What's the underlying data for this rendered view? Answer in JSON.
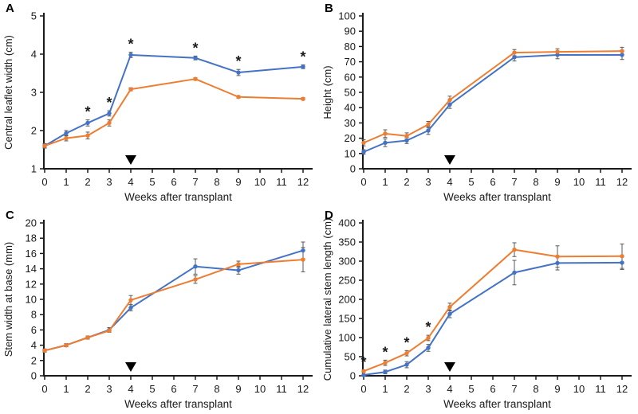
{
  "figure": {
    "xlabel": "Weeks after transplant",
    "x_ticks": [
      0,
      1,
      2,
      3,
      4,
      5,
      6,
      7,
      8,
      9,
      10,
      11,
      12
    ],
    "axis_color": "#1a1a1a",
    "error_bar_color": "#595959",
    "annotation_color": "#000000",
    "series_palette": {
      "blue": "#4472C4",
      "orange": "#ED7D31"
    }
  },
  "chart_data": [
    {
      "panel": "A",
      "type": "line",
      "ylabel": "Central leaflet width (cm)",
      "ylim": [
        1,
        5
      ],
      "yticks": [
        1,
        2,
        3,
        4,
        5
      ],
      "x": [
        0,
        1,
        2,
        3,
        4,
        7,
        9,
        12
      ],
      "series": [
        {
          "name": "blue",
          "color": "#4472C4",
          "values": [
            1.6,
            1.93,
            2.2,
            2.45,
            3.98,
            3.9,
            3.52,
            3.67
          ],
          "errors": [
            0.05,
            0.07,
            0.08,
            0.07,
            0.07,
            0.05,
            0.08,
            0.05
          ]
        },
        {
          "name": "orange",
          "color": "#ED7D31",
          "values": [
            1.6,
            1.8,
            1.87,
            2.2,
            3.08,
            3.35,
            2.88,
            2.83
          ],
          "errors": [
            0.06,
            0.07,
            0.09,
            0.08,
            0.04,
            0.03,
            0.03,
            0.03
          ]
        }
      ],
      "asterisk_weeks": [
        2,
        3,
        4,
        7,
        9,
        12
      ],
      "triangle_week": 4
    },
    {
      "panel": "B",
      "type": "line",
      "ylabel": "Height (cm)",
      "ylim": [
        0,
        100
      ],
      "yticks": [
        0,
        10,
        20,
        30,
        40,
        50,
        60,
        70,
        80,
        90,
        100
      ],
      "x": [
        0,
        1,
        2,
        3,
        4,
        7,
        9,
        12
      ],
      "series": [
        {
          "name": "blue",
          "color": "#4472C4",
          "values": [
            11,
            17,
            18.5,
            25,
            42,
            73,
            74.5,
            74.5
          ],
          "errors": [
            1.5,
            2.5,
            2,
            2.5,
            2.5,
            2.5,
            2.5,
            3
          ]
        },
        {
          "name": "orange",
          "color": "#ED7D31",
          "values": [
            17,
            23,
            21.5,
            29,
            45,
            76,
            76.5,
            77
          ],
          "errors": [
            2,
            2.5,
            2,
            2,
            2.5,
            2,
            2,
            2.5
          ]
        }
      ],
      "asterisk_weeks": [],
      "triangle_week": 4
    },
    {
      "panel": "C",
      "type": "line",
      "ylabel": "Stem width at base (mm)",
      "ylim": [
        0,
        20
      ],
      "yticks": [
        0,
        2,
        4,
        6,
        8,
        10,
        12,
        14,
        16,
        18,
        20
      ],
      "x": [
        0,
        1,
        2,
        3,
        4,
        7,
        9,
        12
      ],
      "series": [
        {
          "name": "blue",
          "color": "#4472C4",
          "values": [
            3.3,
            4.0,
            5.0,
            6.0,
            8.9,
            14.3,
            13.8,
            16.4
          ],
          "errors": [
            0.2,
            0.2,
            0.2,
            0.3,
            0.4,
            1.0,
            0.5,
            1.1
          ]
        },
        {
          "name": "orange",
          "color": "#ED7D31",
          "values": [
            3.3,
            4.0,
            5.0,
            5.9,
            9.9,
            12.6,
            14.6,
            15.2
          ],
          "errors": [
            0.2,
            0.2,
            0.2,
            0.2,
            0.6,
            0.5,
            0.4,
            1.6
          ]
        }
      ],
      "asterisk_weeks": [],
      "triangle_week": 4
    },
    {
      "panel": "D",
      "type": "line",
      "ylabel": "Cumulative lateral stem length (cm)",
      "ylim": [
        0,
        400
      ],
      "yticks": [
        0,
        50,
        100,
        150,
        200,
        250,
        300,
        350,
        400
      ],
      "x": [
        0,
        1,
        2,
        3,
        4,
        7,
        9,
        12
      ],
      "series": [
        {
          "name": "blue",
          "color": "#4472C4",
          "values": [
            2,
            10,
            29,
            73,
            162,
            270,
            295,
            296
          ],
          "errors": [
            2,
            5,
            8,
            9,
            10,
            32,
            18,
            18
          ]
        },
        {
          "name": "orange",
          "color": "#ED7D31",
          "values": [
            12,
            34,
            59,
            99,
            180,
            330,
            312,
            313
          ],
          "errors": [
            3,
            7,
            7,
            7,
            10,
            18,
            28,
            32
          ]
        }
      ],
      "asterisk_weeks": [
        0,
        1,
        2,
        3
      ],
      "triangle_week": 4
    }
  ]
}
